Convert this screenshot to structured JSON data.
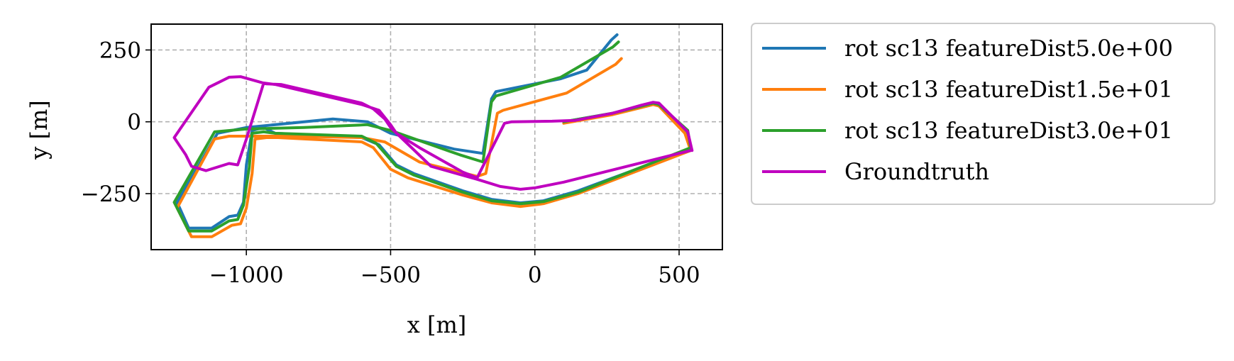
{
  "chart_data": {
    "type": "line",
    "title": "",
    "xlabel": "x [m]",
    "ylabel": "y [m]",
    "xlim": [
      -1330,
      650
    ],
    "ylim": [
      -445,
      340
    ],
    "xticks": [
      -1000,
      -500,
      0,
      500
    ],
    "xtick_labels": [
      "−1000",
      "−500",
      "0",
      "500"
    ],
    "yticks": [
      250,
      0,
      -250
    ],
    "ytick_labels": [
      "250",
      "0",
      "−250"
    ],
    "grid": true,
    "legend_position": "outside-right-top",
    "series": [
      {
        "name": "rot sc13 featureDist5.0e+00",
        "color": "#1f77b4",
        "points": [
          [
            285,
            303
          ],
          [
            265,
            285
          ],
          [
            180,
            180
          ],
          [
            90,
            150
          ],
          [
            -135,
            105
          ],
          [
            -150,
            80
          ],
          [
            -180,
            -110
          ],
          [
            -280,
            -95
          ],
          [
            -500,
            -40
          ],
          [
            -580,
            0
          ],
          [
            -700,
            10
          ],
          [
            -1000,
            -20
          ],
          [
            -1100,
            -40
          ],
          [
            -1240,
            -280
          ],
          [
            -1200,
            -370
          ],
          [
            -1120,
            -370
          ],
          [
            -1060,
            -330
          ],
          [
            -1030,
            -325
          ],
          [
            -1010,
            -280
          ],
          [
            -1000,
            -150
          ],
          [
            -980,
            -30
          ],
          [
            -940,
            -20
          ],
          [
            -900,
            -40
          ],
          [
            -600,
            -55
          ],
          [
            -540,
            -80
          ],
          [
            -480,
            -150
          ],
          [
            -420,
            -180
          ],
          [
            -250,
            -240
          ],
          [
            -150,
            -270
          ],
          [
            -50,
            -282
          ],
          [
            30,
            -275
          ],
          [
            150,
            -240
          ],
          [
            540,
            -95
          ],
          [
            520,
            -30
          ],
          [
            430,
            60
          ],
          [
            410,
            65
          ],
          [
            370,
            55
          ],
          [
            270,
            30
          ],
          [
            100,
            0
          ]
        ]
      },
      {
        "name": "rot sc13 featureDist1.5e+01",
        "color": "#ff7f0e",
        "points": [
          [
            300,
            220
          ],
          [
            280,
            200
          ],
          [
            110,
            100
          ],
          [
            -110,
            40
          ],
          [
            -130,
            30
          ],
          [
            -170,
            -180
          ],
          [
            -200,
            -190
          ],
          [
            -400,
            -140
          ],
          [
            -520,
            -70
          ],
          [
            -600,
            -55
          ],
          [
            -850,
            -50
          ],
          [
            -1000,
            -50
          ],
          [
            -1060,
            -50
          ],
          [
            -1110,
            -60
          ],
          [
            -1240,
            -300
          ],
          [
            -1190,
            -400
          ],
          [
            -1120,
            -400
          ],
          [
            -1050,
            -360
          ],
          [
            -1020,
            -355
          ],
          [
            -1000,
            -300
          ],
          [
            -980,
            -180
          ],
          [
            -970,
            -60
          ],
          [
            -930,
            -55
          ],
          [
            -890,
            -55
          ],
          [
            -600,
            -70
          ],
          [
            -560,
            -90
          ],
          [
            -500,
            -165
          ],
          [
            -440,
            -195
          ],
          [
            -250,
            -255
          ],
          [
            -150,
            -282
          ],
          [
            -50,
            -295
          ],
          [
            30,
            -285
          ],
          [
            150,
            -250
          ],
          [
            540,
            -100
          ],
          [
            520,
            -40
          ],
          [
            430,
            55
          ],
          [
            410,
            60
          ],
          [
            370,
            50
          ],
          [
            270,
            25
          ],
          [
            100,
            -5
          ]
        ]
      },
      {
        "name": "rot sc13 featureDist3.0e+01",
        "color": "#2ca02c",
        "points": [
          [
            290,
            278
          ],
          [
            270,
            260
          ],
          [
            90,
            155
          ],
          [
            -135,
            90
          ],
          [
            -150,
            70
          ],
          [
            -180,
            -140
          ],
          [
            -260,
            -115
          ],
          [
            -500,
            -30
          ],
          [
            -580,
            -10
          ],
          [
            -800,
            -20
          ],
          [
            -1000,
            -25
          ],
          [
            -1110,
            -35
          ],
          [
            -1250,
            -280
          ],
          [
            -1200,
            -380
          ],
          [
            -1120,
            -380
          ],
          [
            -1060,
            -345
          ],
          [
            -1030,
            -340
          ],
          [
            -1010,
            -290
          ],
          [
            -990,
            -160
          ],
          [
            -980,
            -40
          ],
          [
            -940,
            -35
          ],
          [
            -900,
            -40
          ],
          [
            -600,
            -50
          ],
          [
            -550,
            -75
          ],
          [
            -480,
            -155
          ],
          [
            -420,
            -185
          ],
          [
            -250,
            -245
          ],
          [
            -150,
            -275
          ],
          [
            -50,
            -285
          ],
          [
            30,
            -278
          ],
          [
            150,
            -245
          ],
          [
            540,
            -90
          ],
          [
            530,
            -30
          ],
          [
            430,
            60
          ],
          [
            410,
            65
          ],
          [
            370,
            55
          ],
          [
            270,
            30
          ],
          [
            100,
            0
          ]
        ]
      },
      {
        "name": "Groundtruth",
        "color": "#bf00bf",
        "points": [
          [
            545,
            -100
          ],
          [
            530,
            -35
          ],
          [
            430,
            65
          ],
          [
            410,
            68
          ],
          [
            370,
            58
          ],
          [
            270,
            30
          ],
          [
            140,
            5
          ],
          [
            60,
            2
          ],
          [
            -80,
            0
          ],
          [
            -105,
            -5
          ],
          [
            -200,
            -195
          ],
          [
            -250,
            -175
          ],
          [
            -400,
            -90
          ],
          [
            -480,
            -40
          ],
          [
            -500,
            -10
          ],
          [
            -540,
            40
          ],
          [
            -600,
            60
          ],
          [
            -900,
            130
          ],
          [
            -940,
            135
          ],
          [
            -1000,
            -60
          ],
          [
            -1010,
            -90
          ],
          [
            -1030,
            -150
          ],
          [
            -1060,
            -145
          ],
          [
            -1140,
            -170
          ],
          [
            -1190,
            -155
          ],
          [
            -1210,
            -115
          ],
          [
            -1250,
            -55
          ],
          [
            -1130,
            120
          ],
          [
            -1060,
            155
          ],
          [
            -1020,
            157
          ],
          [
            -930,
            132
          ],
          [
            -880,
            130
          ],
          [
            -600,
            65
          ],
          [
            -560,
            45
          ],
          [
            -520,
            10
          ],
          [
            -500,
            -20
          ],
          [
            -360,
            -155
          ],
          [
            -200,
            -200
          ],
          [
            -120,
            -225
          ],
          [
            -50,
            -235
          ],
          [
            0,
            -230
          ],
          [
            100,
            -210
          ],
          [
            540,
            -100
          ]
        ]
      }
    ]
  }
}
